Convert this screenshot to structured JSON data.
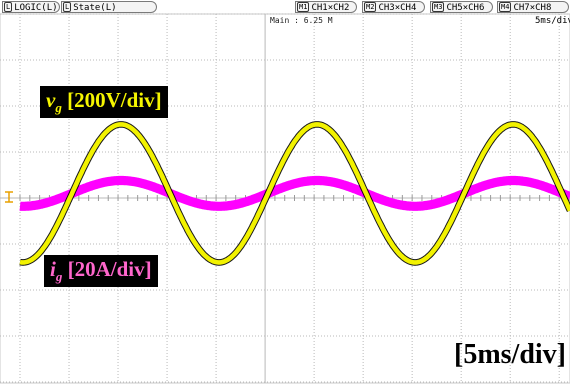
{
  "header": {
    "tabs": [
      {
        "badge": "L",
        "label": "LOGIC(L)"
      },
      {
        "badge": "L",
        "label": "State(L)"
      },
      {
        "badge": "M1",
        "label": "CH1×CH2"
      },
      {
        "badge": "M2",
        "label": "CH3×CH4"
      },
      {
        "badge": "M3",
        "label": "CH5×CH6"
      },
      {
        "badge": "M4",
        "label": "CH7×CH8"
      }
    ],
    "main_readout": "Main : 6.25 M",
    "timebase": "5ms/div"
  },
  "labels": {
    "vg_symbol": "v",
    "vg_sub": "g",
    "vg_scale": "[200V/div]",
    "ig_symbol": "i",
    "ig_sub": "g",
    "ig_scale": "[20A/div]",
    "timescale": "[5ms/div]"
  },
  "chart_data": {
    "type": "line",
    "title": "",
    "xlabel": "[5ms/div]",
    "ylabel": "",
    "grid": true,
    "xlim": [
      0,
      56.1
    ],
    "x_unit": "ms",
    "series": [
      {
        "name": "v_g [200V/div]",
        "color": "#f2f200",
        "amplitude_div": 1.5,
        "amplitude": 300,
        "unit": "V",
        "offset_div": 0.1,
        "period_ms": 20,
        "zero_crossing_ms": 5.3,
        "band_div": 0.1
      },
      {
        "name": "i_g [20A/div]",
        "color": "#ff00ff",
        "amplitude_div": 0.28,
        "amplitude": 5.6,
        "unit": "A",
        "offset_div": 0.1,
        "period_ms": 20,
        "zero_crossing_ms": 5.3,
        "band_div": 0.2
      }
    ]
  }
}
